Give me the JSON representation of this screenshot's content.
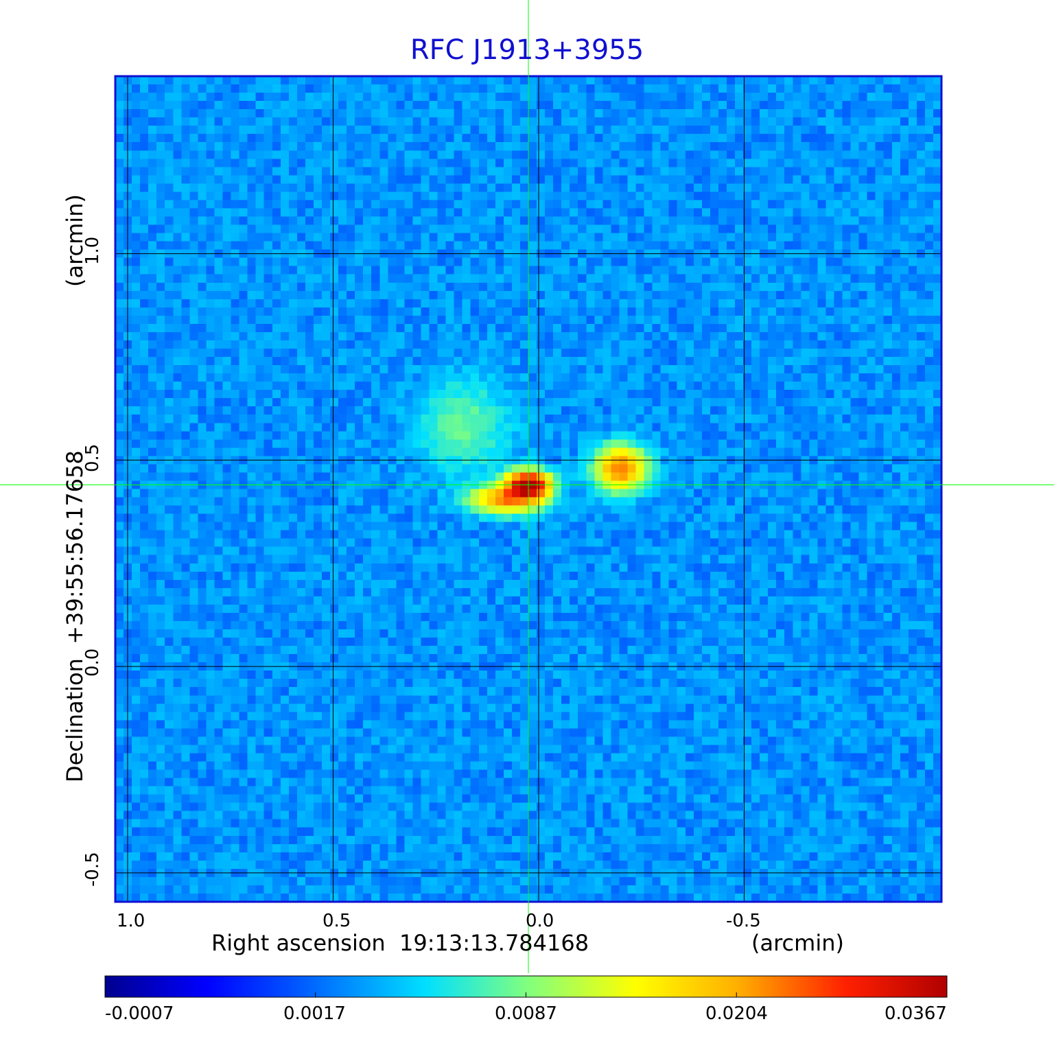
{
  "chart_data": {
    "type": "heatmap",
    "title": "RFC J1913+3955",
    "xlabel": "Right ascension  19:13:13.784168",
    "xunit": "(arcmin)",
    "ylabel": "Declination  +39:55:56.17658",
    "yunit": "(arcmin)",
    "xlim": [
      1.03,
      -0.98
    ],
    "ylim": [
      -0.57,
      1.43
    ],
    "x_ticks": [
      "1.0",
      "0.5",
      "0.0",
      "-0.5"
    ],
    "x_tick_values": [
      1.0,
      0.5,
      0.0,
      -0.5
    ],
    "y_ticks": [
      "-0.5",
      "0.0",
      "0.5",
      "1.0"
    ],
    "y_tick_values": [
      -0.5,
      0.0,
      0.5,
      1.0
    ],
    "grid": true,
    "crosshair": {
      "x": 0.025,
      "y": 0.44
    },
    "colormap": "jet",
    "colorbar_ticks": [
      "-0.0007",
      "0.0017",
      "0.0087",
      "0.0204",
      "0.0367"
    ],
    "sources": [
      {
        "x": 0.025,
        "y": 0.44,
        "peak": 0.0367,
        "sx": 0.035,
        "sy": 0.022
      },
      {
        "x": 0.08,
        "y": 0.405,
        "peak": 0.019,
        "sx": 0.055,
        "sy": 0.022
      },
      {
        "x": -0.2,
        "y": 0.48,
        "peak": 0.021,
        "sx": 0.04,
        "sy": 0.035
      },
      {
        "x": 0.18,
        "y": 0.58,
        "peak": 0.0045,
        "sx": 0.07,
        "sy": 0.075
      }
    ],
    "colors": {
      "frame": "#1010d0",
      "grid": "#000000",
      "crosshair": "#00ff00"
    }
  }
}
